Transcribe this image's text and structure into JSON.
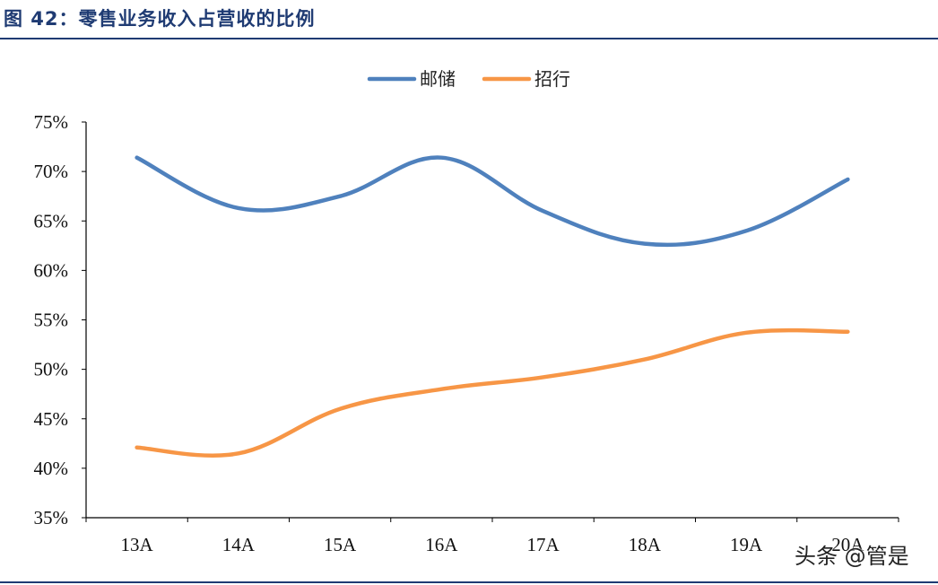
{
  "figure_title": "图 42：零售业务收入占营收的比例",
  "watermark": "头条 @管是",
  "chart_data": {
    "type": "line",
    "title": "",
    "xlabel": "",
    "ylabel": "",
    "categories": [
      "13A",
      "14A",
      "15A",
      "16A",
      "17A",
      "18A",
      "19A",
      "20A"
    ],
    "ylim": [
      35,
      75
    ],
    "yticks": [
      35,
      40,
      45,
      50,
      55,
      60,
      65,
      70,
      75
    ],
    "ytick_labels": [
      "35%",
      "40%",
      "45%",
      "50%",
      "55%",
      "60%",
      "65%",
      "70%",
      "75%"
    ],
    "grid": false,
    "legend_position": "top-center",
    "series": [
      {
        "name": "邮储",
        "color": "#4f81bd",
        "values": [
          71.4,
          66.3,
          67.5,
          71.4,
          66.0,
          62.7,
          64.0,
          69.2
        ]
      },
      {
        "name": "招行",
        "color": "#f79646",
        "values": [
          42.1,
          41.5,
          46.0,
          48.0,
          49.2,
          51.0,
          53.7,
          53.8
        ]
      }
    ]
  }
}
